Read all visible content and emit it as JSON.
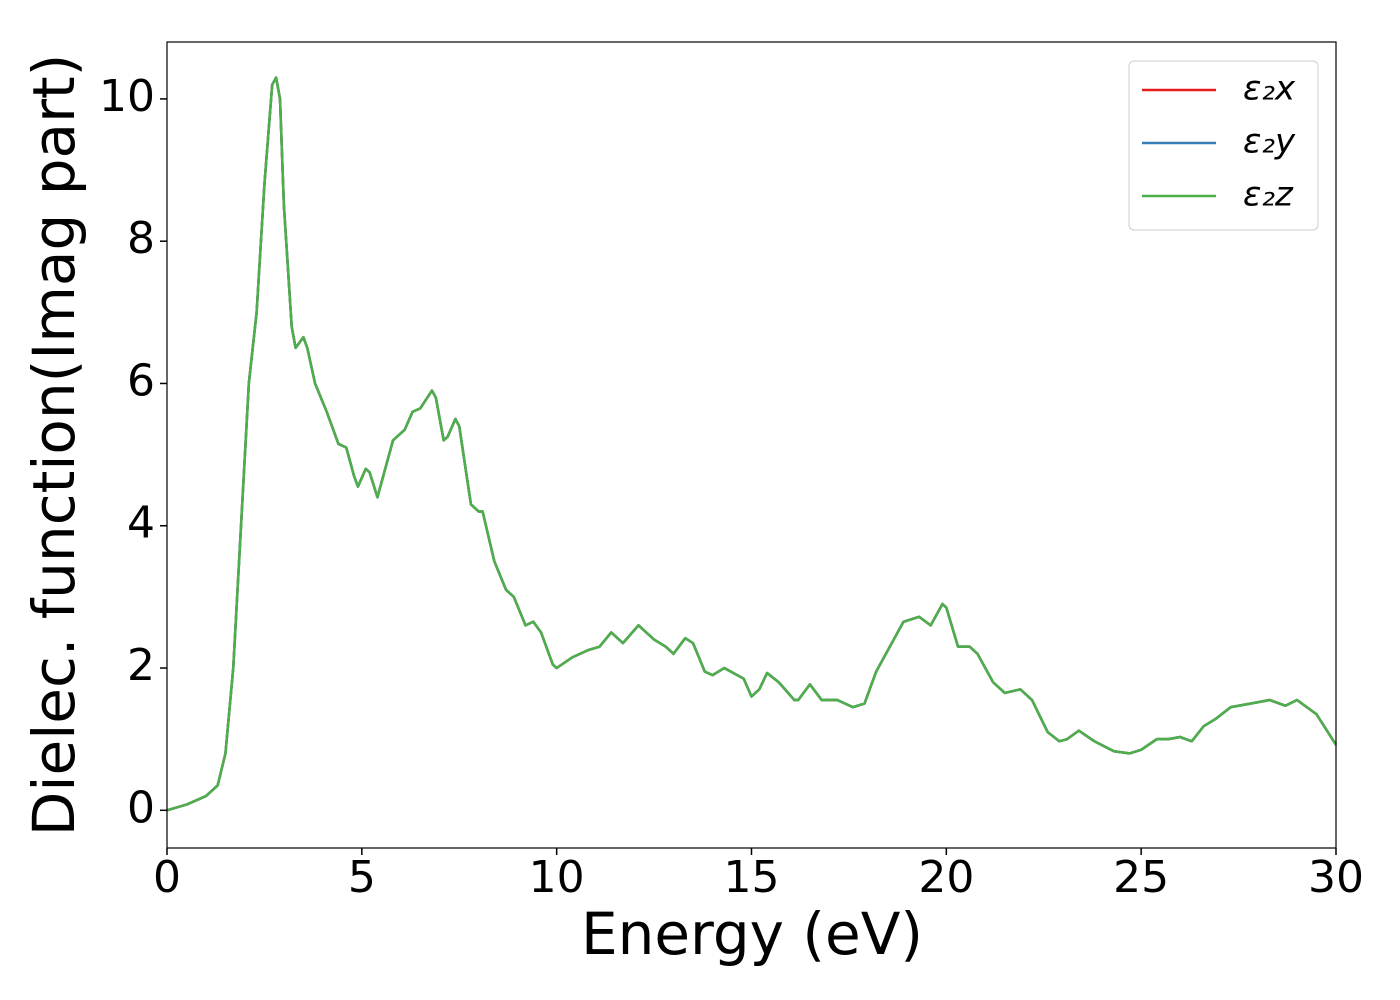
{
  "chart_data": {
    "type": "line",
    "xlabel": "Energy (eV)",
    "ylabel": "Dielec. function(Imag part)",
    "xlim": [
      0,
      30
    ],
    "ylim": [
      -0.53,
      10.8
    ],
    "xticks": [
      0,
      5,
      10,
      15,
      20,
      25,
      30
    ],
    "yticks": [
      0,
      2,
      4,
      6,
      8,
      10
    ],
    "grid": false,
    "legend": "upper right",
    "x": [
      0,
      0.5,
      1.0,
      1.3,
      1.5,
      1.7,
      1.9,
      2.1,
      2.3,
      2.5,
      2.7,
      2.8,
      2.9,
      3.0,
      3.2,
      3.3,
      3.5,
      3.6,
      3.8,
      4.1,
      4.4,
      4.6,
      4.8,
      4.9,
      5.1,
      5.2,
      5.4,
      5.6,
      5.8,
      6.1,
      6.3,
      6.5,
      6.8,
      6.9,
      7.1,
      7.2,
      7.4,
      7.5,
      7.8,
      8.0,
      8.1,
      8.4,
      8.7,
      8.9,
      9.2,
      9.4,
      9.6,
      9.9,
      10.0,
      10.4,
      10.8,
      11.1,
      11.4,
      11.7,
      12.1,
      12.5,
      12.8,
      13.0,
      13.3,
      13.5,
      13.8,
      14.0,
      14.3,
      14.8,
      15.0,
      15.2,
      15.4,
      15.7,
      16.1,
      16.2,
      16.5,
      16.8,
      17.2,
      17.6,
      17.9,
      18.2,
      18.5,
      18.9,
      19.3,
      19.6,
      19.9,
      20.0,
      20.3,
      20.6,
      20.8,
      21.2,
      21.5,
      21.9,
      22.2,
      22.6,
      22.9,
      23.1,
      23.4,
      23.8,
      24.3,
      24.7,
      25.0,
      25.4,
      25.7,
      26.0,
      26.3,
      26.6,
      26.9,
      27.3,
      27.8,
      28.3,
      28.7,
      29.0,
      29.5,
      30.0
    ],
    "series": [
      {
        "name": "ε₂x",
        "color": "#e41a1c",
        "values": [
          0,
          0.08,
          0.2,
          0.35,
          0.8,
          2.0,
          4.0,
          6.0,
          7.0,
          8.8,
          10.2,
          10.3,
          10.0,
          8.5,
          6.8,
          6.5,
          6.65,
          6.5,
          6.0,
          5.6,
          5.15,
          5.1,
          4.7,
          4.55,
          4.8,
          4.75,
          4.4,
          4.8,
          5.2,
          5.35,
          5.6,
          5.65,
          5.9,
          5.8,
          5.2,
          5.25,
          5.5,
          5.4,
          4.3,
          4.2,
          4.2,
          3.5,
          3.1,
          3.0,
          2.6,
          2.65,
          2.5,
          2.05,
          2.0,
          2.15,
          2.25,
          2.3,
          2.5,
          2.35,
          2.6,
          2.4,
          2.3,
          2.2,
          2.42,
          2.35,
          1.95,
          1.9,
          2.0,
          1.85,
          1.6,
          1.7,
          1.93,
          1.8,
          1.55,
          1.55,
          1.77,
          1.55,
          1.55,
          1.45,
          1.5,
          1.95,
          2.25,
          2.65,
          2.72,
          2.6,
          2.9,
          2.85,
          2.3,
          2.3,
          2.2,
          1.8,
          1.65,
          1.7,
          1.55,
          1.1,
          0.97,
          1.0,
          1.12,
          0.97,
          0.83,
          0.8,
          0.85,
          1.0,
          1.0,
          1.03,
          0.97,
          1.18,
          1.28,
          1.45,
          1.5,
          1.55,
          1.47,
          1.55,
          1.35,
          0.92
        ]
      },
      {
        "name": "ε₂y",
        "color": "#377eb8",
        "values": [
          0,
          0.08,
          0.2,
          0.35,
          0.8,
          2.0,
          4.0,
          6.0,
          7.0,
          8.8,
          10.2,
          10.3,
          10.0,
          8.5,
          6.8,
          6.5,
          6.65,
          6.5,
          6.0,
          5.6,
          5.15,
          5.1,
          4.7,
          4.55,
          4.8,
          4.75,
          4.4,
          4.8,
          5.2,
          5.35,
          5.6,
          5.65,
          5.9,
          5.8,
          5.2,
          5.25,
          5.5,
          5.4,
          4.3,
          4.2,
          4.2,
          3.5,
          3.1,
          3.0,
          2.6,
          2.65,
          2.5,
          2.05,
          2.0,
          2.15,
          2.25,
          2.3,
          2.5,
          2.35,
          2.6,
          2.4,
          2.3,
          2.2,
          2.42,
          2.35,
          1.95,
          1.9,
          2.0,
          1.85,
          1.6,
          1.7,
          1.93,
          1.8,
          1.55,
          1.55,
          1.77,
          1.55,
          1.55,
          1.45,
          1.5,
          1.95,
          2.25,
          2.65,
          2.72,
          2.6,
          2.9,
          2.85,
          2.3,
          2.3,
          2.2,
          1.8,
          1.65,
          1.7,
          1.55,
          1.1,
          0.97,
          1.0,
          1.12,
          0.97,
          0.83,
          0.8,
          0.85,
          1.0,
          1.0,
          1.03,
          0.97,
          1.18,
          1.28,
          1.45,
          1.5,
          1.55,
          1.47,
          1.55,
          1.35,
          0.92
        ]
      },
      {
        "name": "ε₂z",
        "color": "#4daf4a",
        "values": [
          0,
          0.08,
          0.2,
          0.35,
          0.8,
          2.0,
          4.0,
          6.0,
          7.0,
          8.8,
          10.2,
          10.3,
          10.0,
          8.5,
          6.8,
          6.5,
          6.65,
          6.5,
          6.0,
          5.6,
          5.15,
          5.1,
          4.7,
          4.55,
          4.8,
          4.75,
          4.4,
          4.8,
          5.2,
          5.35,
          5.6,
          5.65,
          5.9,
          5.8,
          5.2,
          5.25,
          5.5,
          5.4,
          4.3,
          4.2,
          4.2,
          3.5,
          3.1,
          3.0,
          2.6,
          2.65,
          2.5,
          2.05,
          2.0,
          2.15,
          2.25,
          2.3,
          2.5,
          2.35,
          2.6,
          2.4,
          2.3,
          2.2,
          2.42,
          2.35,
          1.95,
          1.9,
          2.0,
          1.85,
          1.6,
          1.7,
          1.93,
          1.8,
          1.55,
          1.55,
          1.77,
          1.55,
          1.55,
          1.45,
          1.5,
          1.95,
          2.25,
          2.65,
          2.72,
          2.6,
          2.9,
          2.85,
          2.3,
          2.3,
          2.2,
          1.8,
          1.65,
          1.7,
          1.55,
          1.1,
          0.97,
          1.0,
          1.12,
          0.97,
          0.83,
          0.8,
          0.85,
          1.0,
          1.0,
          1.03,
          0.97,
          1.18,
          1.28,
          1.45,
          1.5,
          1.55,
          1.47,
          1.55,
          1.35,
          0.92
        ]
      }
    ]
  }
}
